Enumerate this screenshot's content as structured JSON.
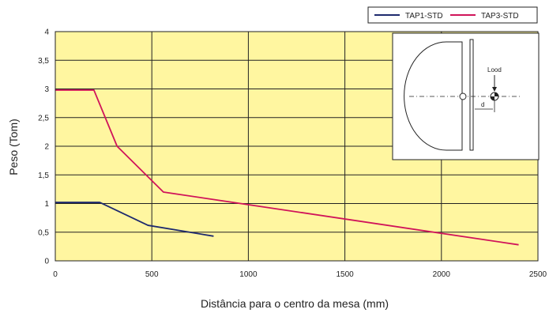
{
  "chart_data": {
    "type": "line",
    "title": "",
    "xlabel": "Distância para o centro da mesa (mm)",
    "ylabel": "Peso (Tom)",
    "xlim": [
      0,
      2500
    ],
    "ylim": [
      0,
      4
    ],
    "x_ticks": [
      "0",
      "500",
      "1000",
      "1500",
      "2000",
      "2500"
    ],
    "y_ticks": [
      "0",
      "0,5",
      "1",
      "1,5",
      "2",
      "2,5",
      "3",
      "3,5",
      "4"
    ],
    "grid": true,
    "background_color": "#fff6a0",
    "legend_position": "top-right",
    "series": [
      {
        "name": "TAP1-STD",
        "color": "#1e2a6e",
        "points": [
          [
            0,
            1.02
          ],
          [
            230,
            1.02
          ],
          [
            480,
            0.62
          ],
          [
            820,
            0.43
          ]
        ]
      },
      {
        "name": "TAP3-STD",
        "color": "#d0145a",
        "points": [
          [
            0,
            2.98
          ],
          [
            200,
            2.98
          ],
          [
            320,
            2.0
          ],
          [
            560,
            1.2
          ],
          [
            2400,
            0.28
          ]
        ]
      }
    ]
  },
  "diagram": {
    "label_load": "Lood",
    "label_distance": "d"
  }
}
